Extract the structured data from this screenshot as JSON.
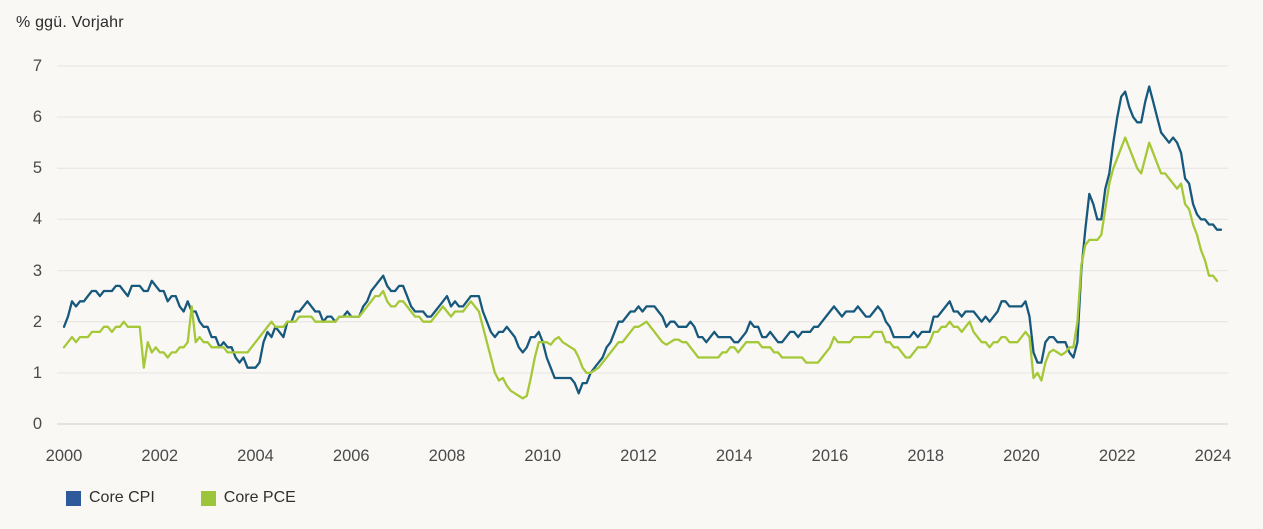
{
  "chart": {
    "title": "% ggü. Vorjahr",
    "background_color": "#faf8f5",
    "gridline_color": "#ebe8e5",
    "zeroline_color": "#d8d5d1",
    "axis_text_color": "#4a4a4a"
  },
  "legend": [
    {
      "label": "Core CPI",
      "swatch_color": "#2e599b"
    },
    {
      "label": "Core PCE",
      "swatch_color": "#9dc53c"
    }
  ],
  "chart_data": {
    "type": "line",
    "title": "% ggü. Vorjahr",
    "xlabel": "",
    "ylabel": "% ggü. Vorjahr",
    "x_unit": "month",
    "x_start": "2000-01",
    "x_tick_labels": [
      "2000",
      "2002",
      "2004",
      "2006",
      "2008",
      "2010",
      "2012",
      "2014",
      "2016",
      "2018",
      "2020",
      "2022",
      "2024"
    ],
    "y_tick_labels": [
      "0",
      "1",
      "2",
      "3",
      "4",
      "5",
      "6",
      "7"
    ],
    "ylim": [
      0,
      7
    ],
    "grid": "horizontal",
    "legend_position": "bottom-left",
    "series": [
      {
        "name": "Core CPI",
        "color": "#17597d",
        "values": [
          1.9,
          2.1,
          2.4,
          2.3,
          2.4,
          2.4,
          2.5,
          2.6,
          2.6,
          2.5,
          2.6,
          2.6,
          2.6,
          2.7,
          2.7,
          2.6,
          2.5,
          2.7,
          2.7,
          2.7,
          2.6,
          2.6,
          2.8,
          2.7,
          2.6,
          2.6,
          2.4,
          2.5,
          2.5,
          2.3,
          2.2,
          2.4,
          2.2,
          2.2,
          2.0,
          1.9,
          1.9,
          1.7,
          1.7,
          1.5,
          1.6,
          1.5,
          1.5,
          1.3,
          1.2,
          1.3,
          1.1,
          1.1,
          1.1,
          1.2,
          1.6,
          1.8,
          1.7,
          1.9,
          1.8,
          1.7,
          2.0,
          2.0,
          2.2,
          2.2,
          2.3,
          2.4,
          2.3,
          2.2,
          2.2,
          2.0,
          2.1,
          2.1,
          2.0,
          2.1,
          2.1,
          2.2,
          2.1,
          2.1,
          2.1,
          2.3,
          2.4,
          2.6,
          2.7,
          2.8,
          2.9,
          2.7,
          2.6,
          2.6,
          2.7,
          2.7,
          2.5,
          2.3,
          2.2,
          2.2,
          2.2,
          2.1,
          2.1,
          2.2,
          2.3,
          2.4,
          2.5,
          2.3,
          2.4,
          2.3,
          2.3,
          2.4,
          2.5,
          2.5,
          2.5,
          2.2,
          2.0,
          1.8,
          1.7,
          1.8,
          1.8,
          1.9,
          1.8,
          1.7,
          1.5,
          1.4,
          1.5,
          1.7,
          1.7,
          1.8,
          1.6,
          1.3,
          1.1,
          0.9,
          0.9,
          0.9,
          0.9,
          0.9,
          0.8,
          0.6,
          0.8,
          0.8,
          1.0,
          1.1,
          1.2,
          1.3,
          1.5,
          1.6,
          1.8,
          2.0,
          2.0,
          2.1,
          2.2,
          2.2,
          2.3,
          2.2,
          2.3,
          2.3,
          2.3,
          2.2,
          2.1,
          1.9,
          2.0,
          2.0,
          1.9,
          1.9,
          1.9,
          2.0,
          1.9,
          1.7,
          1.7,
          1.6,
          1.7,
          1.8,
          1.7,
          1.7,
          1.7,
          1.7,
          1.6,
          1.6,
          1.7,
          1.8,
          2.0,
          1.9,
          1.9,
          1.7,
          1.7,
          1.8,
          1.7,
          1.6,
          1.6,
          1.7,
          1.8,
          1.8,
          1.7,
          1.8,
          1.8,
          1.8,
          1.9,
          1.9,
          2.0,
          2.1,
          2.2,
          2.3,
          2.2,
          2.1,
          2.2,
          2.2,
          2.2,
          2.3,
          2.2,
          2.1,
          2.1,
          2.2,
          2.3,
          2.2,
          2.0,
          1.9,
          1.7,
          1.7,
          1.7,
          1.7,
          1.7,
          1.8,
          1.7,
          1.8,
          1.8,
          1.8,
          2.1,
          2.1,
          2.2,
          2.3,
          2.4,
          2.2,
          2.2,
          2.1,
          2.2,
          2.2,
          2.2,
          2.1,
          2.0,
          2.1,
          2.0,
          2.1,
          2.2,
          2.4,
          2.4,
          2.3,
          2.3,
          2.3,
          2.3,
          2.4,
          2.1,
          1.4,
          1.2,
          1.2,
          1.6,
          1.7,
          1.7,
          1.6,
          1.6,
          1.6,
          1.4,
          1.3,
          1.6,
          3.0,
          3.8,
          4.5,
          4.3,
          4.0,
          4.0,
          4.6,
          4.9,
          5.5,
          6.0,
          6.4,
          6.5,
          6.2,
          6.0,
          5.9,
          5.9,
          6.3,
          6.6,
          6.3,
          6.0,
          5.7,
          5.6,
          5.5,
          5.6,
          5.5,
          5.3,
          4.8,
          4.7,
          4.3,
          4.1,
          4.0,
          4.0,
          3.9,
          3.9,
          3.8,
          3.8
        ]
      },
      {
        "name": "Core PCE",
        "color": "#a5c838",
        "values": [
          1.5,
          1.6,
          1.7,
          1.6,
          1.7,
          1.7,
          1.7,
          1.8,
          1.8,
          1.8,
          1.9,
          1.9,
          1.8,
          1.9,
          1.9,
          2.0,
          1.9,
          1.9,
          1.9,
          1.9,
          1.1,
          1.6,
          1.4,
          1.5,
          1.4,
          1.4,
          1.3,
          1.4,
          1.4,
          1.5,
          1.5,
          1.6,
          2.3,
          1.6,
          1.7,
          1.6,
          1.6,
          1.5,
          1.5,
          1.5,
          1.5,
          1.4,
          1.4,
          1.4,
          1.4,
          1.4,
          1.4,
          1.5,
          1.6,
          1.7,
          1.8,
          1.9,
          2.0,
          1.9,
          1.9,
          1.9,
          2.0,
          2.0,
          2.0,
          2.1,
          2.1,
          2.1,
          2.1,
          2.0,
          2.0,
          2.0,
          2.0,
          2.0,
          2.0,
          2.1,
          2.1,
          2.1,
          2.1,
          2.1,
          2.1,
          2.2,
          2.3,
          2.4,
          2.5,
          2.5,
          2.6,
          2.4,
          2.3,
          2.3,
          2.4,
          2.4,
          2.3,
          2.2,
          2.1,
          2.1,
          2.0,
          2.0,
          2.0,
          2.1,
          2.2,
          2.3,
          2.2,
          2.1,
          2.2,
          2.2,
          2.2,
          2.3,
          2.4,
          2.3,
          2.2,
          1.9,
          1.6,
          1.3,
          1.0,
          0.85,
          0.9,
          0.75,
          0.65,
          0.6,
          0.55,
          0.5,
          0.55,
          0.9,
          1.3,
          1.6,
          1.6,
          1.6,
          1.55,
          1.65,
          1.7,
          1.6,
          1.55,
          1.5,
          1.45,
          1.3,
          1.1,
          1.0,
          1.0,
          1.05,
          1.1,
          1.2,
          1.3,
          1.4,
          1.5,
          1.6,
          1.6,
          1.7,
          1.8,
          1.9,
          1.9,
          1.95,
          2.0,
          1.9,
          1.8,
          1.7,
          1.6,
          1.55,
          1.6,
          1.65,
          1.65,
          1.6,
          1.6,
          1.5,
          1.4,
          1.3,
          1.3,
          1.3,
          1.3,
          1.3,
          1.3,
          1.4,
          1.4,
          1.5,
          1.5,
          1.4,
          1.5,
          1.6,
          1.6,
          1.6,
          1.6,
          1.5,
          1.5,
          1.5,
          1.4,
          1.4,
          1.3,
          1.3,
          1.3,
          1.3,
          1.3,
          1.3,
          1.2,
          1.2,
          1.2,
          1.2,
          1.3,
          1.4,
          1.5,
          1.7,
          1.6,
          1.6,
          1.6,
          1.6,
          1.7,
          1.7,
          1.7,
          1.7,
          1.7,
          1.8,
          1.8,
          1.8,
          1.6,
          1.6,
          1.5,
          1.5,
          1.4,
          1.3,
          1.3,
          1.4,
          1.5,
          1.5,
          1.5,
          1.6,
          1.8,
          1.8,
          1.9,
          1.9,
          2.0,
          1.9,
          1.9,
          1.8,
          1.9,
          2.0,
          1.8,
          1.7,
          1.6,
          1.6,
          1.5,
          1.6,
          1.6,
          1.7,
          1.7,
          1.6,
          1.6,
          1.6,
          1.7,
          1.8,
          1.7,
          0.9,
          1.0,
          0.85,
          1.2,
          1.4,
          1.45,
          1.4,
          1.35,
          1.4,
          1.5,
          1.5,
          2.0,
          3.1,
          3.5,
          3.6,
          3.6,
          3.6,
          3.7,
          4.2,
          4.7,
          5.0,
          5.2,
          5.4,
          5.6,
          5.4,
          5.2,
          5.0,
          4.9,
          5.2,
          5.5,
          5.3,
          5.1,
          4.9,
          4.9,
          4.8,
          4.7,
          4.6,
          4.7,
          4.3,
          4.2,
          3.9,
          3.7,
          3.4,
          3.2,
          2.9,
          2.9,
          2.8
        ]
      }
    ]
  }
}
